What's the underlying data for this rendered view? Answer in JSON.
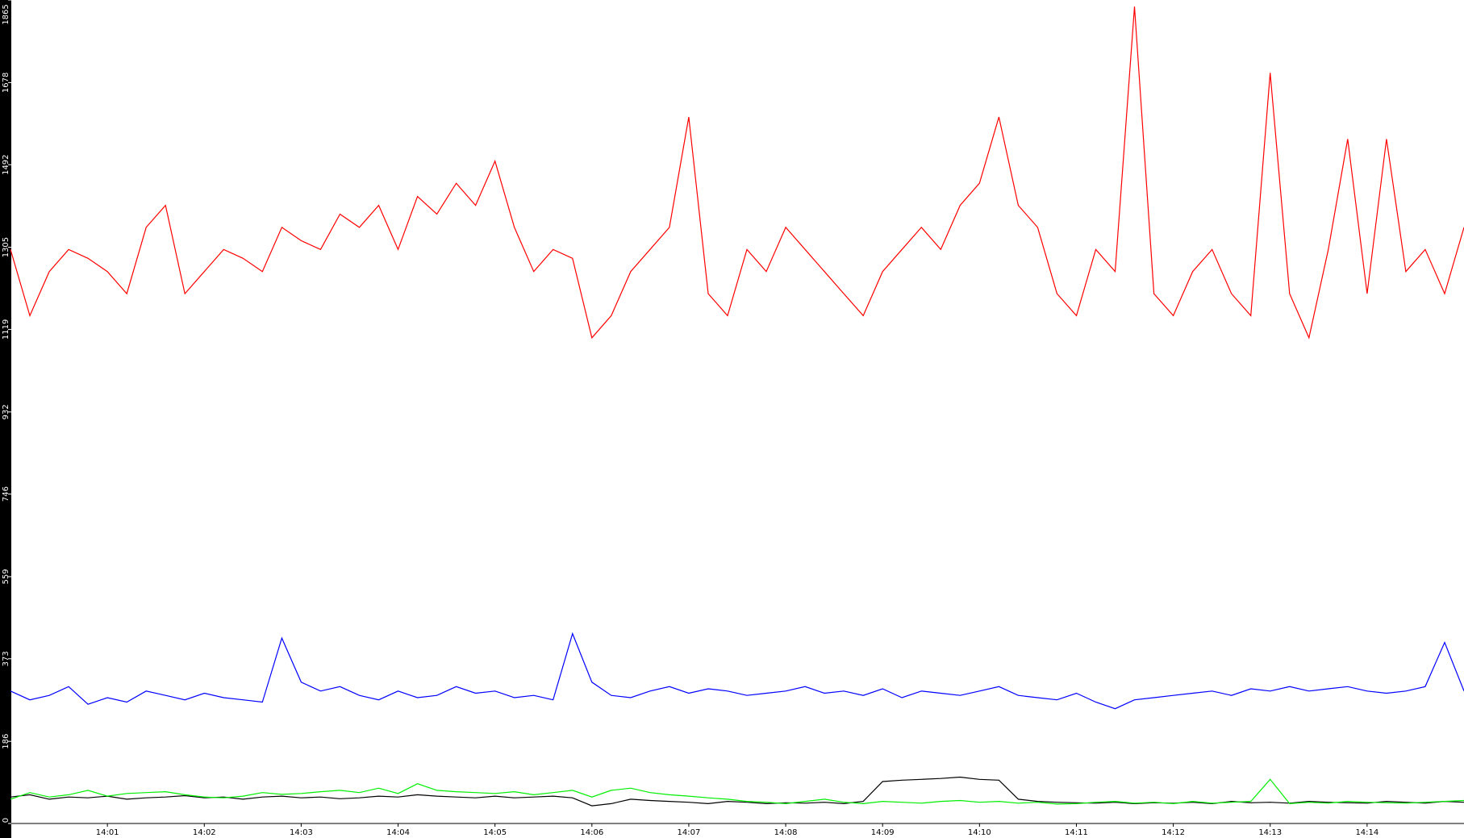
{
  "chart_data": {
    "type": "line",
    "x": [
      0,
      0.2,
      0.4,
      0.6,
      0.8,
      1,
      1.2,
      1.4,
      1.6,
      1.8,
      2,
      2.2,
      2.4,
      2.6,
      2.8,
      3,
      3.2,
      3.4,
      3.6,
      3.8,
      4,
      4.2,
      4.4,
      4.6,
      4.8,
      5,
      5.2,
      5.4,
      5.6,
      5.8,
      6,
      6.2,
      6.4,
      6.6,
      6.8,
      7,
      7.2,
      7.4,
      7.6,
      7.8,
      8,
      8.2,
      8.4,
      8.6,
      8.8,
      9,
      9.2,
      9.4,
      9.6,
      9.8,
      10,
      10.2,
      10.4,
      10.6,
      10.8,
      11,
      11.2,
      11.4,
      11.6,
      11.8,
      12,
      12.2,
      12.4,
      12.6,
      12.8,
      13,
      13.2,
      13.4,
      13.6,
      13.8,
      14,
      14.2,
      14.4,
      14.6,
      14.8,
      15
    ],
    "series": [
      {
        "name": "red",
        "color": "#ff0000",
        "values": [
          1300,
          1150,
          1250,
          1300,
          1280,
          1250,
          1200,
          1350,
          1400,
          1200,
          1250,
          1300,
          1280,
          1250,
          1350,
          1320,
          1300,
          1380,
          1350,
          1400,
          1300,
          1420,
          1380,
          1450,
          1400,
          1500,
          1350,
          1250,
          1300,
          1280,
          1100,
          1150,
          1250,
          1300,
          1350,
          1600,
          1200,
          1150,
          1300,
          1250,
          1350,
          1300,
          1250,
          1200,
          1150,
          1250,
          1300,
          1350,
          1300,
          1400,
          1450,
          1600,
          1400,
          1350,
          1200,
          1150,
          1300,
          1250,
          1850,
          1200,
          1150,
          1250,
          1300,
          1200,
          1150,
          1700,
          1200,
          1100,
          1300,
          1550,
          1200,
          1550,
          1250,
          1300,
          1200,
          1350
        ]
      },
      {
        "name": "blue",
        "color": "#0000ff",
        "values": [
          300,
          280,
          290,
          310,
          270,
          285,
          275,
          300,
          290,
          280,
          295,
          285,
          280,
          275,
          420,
          320,
          300,
          310,
          290,
          280,
          300,
          285,
          290,
          310,
          295,
          300,
          285,
          290,
          280,
          430,
          320,
          290,
          285,
          300,
          310,
          295,
          305,
          300,
          290,
          295,
          300,
          310,
          295,
          300,
          290,
          305,
          285,
          300,
          295,
          290,
          300,
          310,
          290,
          285,
          280,
          295,
          275,
          260,
          280,
          285,
          290,
          295,
          300,
          290,
          305,
          300,
          310,
          300,
          305,
          310,
          300,
          295,
          300,
          310,
          410,
          300
        ]
      },
      {
        "name": "black",
        "color": "#000000",
        "values": [
          60,
          65,
          55,
          60,
          58,
          62,
          55,
          58,
          60,
          63,
          58,
          60,
          55,
          60,
          62,
          58,
          60,
          56,
          58,
          62,
          60,
          65,
          62,
          60,
          58,
          62,
          58,
          60,
          62,
          58,
          40,
          45,
          55,
          52,
          50,
          48,
          45,
          50,
          48,
          45,
          47,
          46,
          48,
          45,
          50,
          95,
          98,
          100,
          102,
          105,
          100,
          98,
          55,
          50,
          48,
          47,
          46,
          48,
          45,
          47,
          46,
          48,
          45,
          50,
          47,
          48,
          46,
          50,
          48,
          47,
          46,
          50,
          48,
          46,
          50,
          48
        ]
      },
      {
        "name": "green",
        "color": "#00ee00",
        "values": [
          55,
          70,
          60,
          65,
          75,
          62,
          68,
          70,
          72,
          65,
          60,
          58,
          62,
          70,
          66,
          68,
          72,
          75,
          70,
          80,
          68,
          90,
          75,
          72,
          70,
          68,
          72,
          65,
          70,
          75,
          60,
          75,
          80,
          70,
          65,
          62,
          58,
          55,
          50,
          48,
          45,
          50,
          55,
          48,
          45,
          50,
          48,
          46,
          50,
          52,
          48,
          50,
          46,
          48,
          44,
          45,
          48,
          50,
          46,
          48,
          45,
          50,
          46,
          48,
          50,
          100,
          45,
          48,
          46,
          50,
          48,
          47,
          46,
          48,
          50,
          52
        ]
      }
    ],
    "xlim": [
      0,
      15
    ],
    "xticks": [
      {
        "value": 1,
        "label": "14:01"
      },
      {
        "value": 2,
        "label": "14:02"
      },
      {
        "value": 3,
        "label": "14:03"
      },
      {
        "value": 4,
        "label": "14:04"
      },
      {
        "value": 5,
        "label": "14:05"
      },
      {
        "value": 6,
        "label": "14:06"
      },
      {
        "value": 7,
        "label": "14:07"
      },
      {
        "value": 8,
        "label": "14:08"
      },
      {
        "value": 9,
        "label": "14:09"
      },
      {
        "value": 10,
        "label": "14:10"
      },
      {
        "value": 11,
        "label": "14:11"
      },
      {
        "value": 12,
        "label": "14:12"
      },
      {
        "value": 13,
        "label": "14:13"
      },
      {
        "value": 14,
        "label": "14:14"
      }
    ],
    "ylim": [
      0,
      1865
    ],
    "yticks": [
      0,
      186,
      373,
      559,
      746,
      932,
      1119,
      1305,
      1492,
      1678,
      1865
    ]
  }
}
